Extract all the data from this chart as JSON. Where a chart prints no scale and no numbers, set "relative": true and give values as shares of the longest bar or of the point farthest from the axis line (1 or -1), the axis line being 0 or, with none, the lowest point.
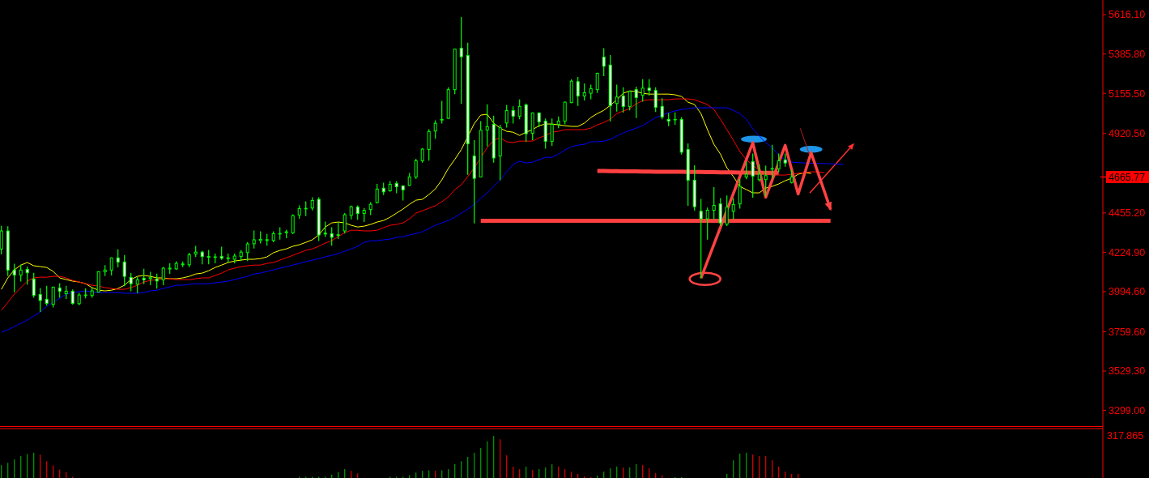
{
  "chart_data": [
    {
      "type": "candlestick",
      "color": "#00ff00",
      "categories": [
        null,
        null,
        null,
        null,
        null,
        null,
        null,
        null,
        null,
        null,
        null,
        null,
        null,
        null,
        null,
        null,
        null,
        null,
        null,
        null,
        null,
        null,
        null,
        null,
        null,
        null,
        null,
        null,
        null,
        null,
        null,
        null,
        null,
        null,
        null,
        null,
        null,
        null,
        null,
        null,
        null,
        null,
        null,
        null,
        null,
        null,
        null,
        null,
        null,
        null,
        null,
        null,
        null,
        null,
        null,
        null,
        null,
        null,
        null,
        null,
        null,
        null,
        null,
        null,
        null,
        null,
        null,
        null,
        null,
        null,
        null,
        null,
        null,
        null,
        null,
        null,
        null,
        null,
        null,
        null,
        null,
        null,
        null,
        null,
        null,
        null,
        null,
        null,
        null,
        null,
        null,
        null,
        null,
        null,
        null,
        null,
        null,
        null,
        null,
        null,
        null,
        null,
        null,
        null,
        null,
        null,
        null,
        null,
        null,
        null,
        null,
        null,
        null,
        null,
        null,
        null,
        null,
        null,
        null,
        null,
        null,
        null,
        null,
        null,
        null,
        null,
        null,
        null,
        null,
        null,
        null
      ],
      "ohlc": [
        [
          4244,
          4377,
          4215,
          4350
        ],
        [
          4350,
          4374,
          4089,
          4121
        ],
        [
          4121,
          4155,
          3994,
          4092
        ],
        [
          4092,
          4149,
          4057,
          4121
        ],
        [
          4125,
          4139,
          4038,
          4105
        ],
        [
          4068,
          4102,
          3962,
          3973
        ],
        [
          3978,
          4013,
          3879,
          3943
        ],
        [
          3950,
          4026,
          3915,
          3926
        ],
        [
          3920,
          4021,
          3905,
          4021
        ],
        [
          4016,
          4041,
          3962,
          3997
        ],
        [
          3983,
          4026,
          3955,
          3997
        ],
        [
          3997,
          4005,
          3921,
          3926
        ],
        [
          3924,
          3985,
          3918,
          3975
        ],
        [
          3972,
          4010,
          3958,
          3975
        ],
        [
          3972,
          4018,
          3962,
          3999
        ],
        [
          3992,
          4111,
          3992,
          4111
        ],
        [
          4111,
          4147,
          4089,
          4121
        ],
        [
          4121,
          4192,
          4092,
          4192
        ],
        [
          4192,
          4239,
          4139,
          4168
        ],
        [
          4168,
          4206,
          4029,
          4084
        ],
        [
          4078,
          4102,
          4000,
          4041
        ],
        [
          4038,
          4078,
          3989,
          4064
        ],
        [
          4073,
          4125,
          4041,
          4064
        ],
        [
          4070,
          4108,
          4035,
          4076
        ],
        [
          4068,
          4097,
          4015,
          4057
        ],
        [
          4064,
          4136,
          4035,
          4132
        ],
        [
          4127,
          4157,
          4102,
          4132
        ],
        [
          4128,
          4169,
          4124,
          4160
        ],
        [
          4152,
          4168,
          4141,
          4157
        ],
        [
          4152,
          4219,
          4141,
          4211
        ],
        [
          4215,
          4260,
          4200,
          4226
        ],
        [
          4226,
          4231,
          4157,
          4200
        ],
        [
          4200,
          4236,
          4157,
          4196
        ],
        [
          4195,
          4215,
          4163,
          4198
        ],
        [
          4200,
          4255,
          4184,
          4190
        ],
        [
          4188,
          4215,
          4168,
          4192
        ],
        [
          4184,
          4215,
          4163,
          4203
        ],
        [
          4200,
          4236,
          4176,
          4226
        ],
        [
          4223,
          4282,
          4176,
          4274
        ],
        [
          4275,
          4350,
          4250,
          4298
        ],
        [
          4294,
          4345,
          4279,
          4301
        ],
        [
          4294,
          4329,
          4266,
          4299
        ],
        [
          4294,
          4345,
          4286,
          4334
        ],
        [
          4332,
          4369,
          4302,
          4335
        ],
        [
          4339,
          4354,
          4310,
          4345
        ],
        [
          4339,
          4445,
          4334,
          4440
        ],
        [
          4443,
          4497,
          4424,
          4481
        ],
        [
          4479,
          4520,
          4440,
          4482
        ],
        [
          4484,
          4544,
          4473,
          4528
        ],
        [
          4535,
          4544,
          4294,
          4326
        ],
        [
          4337,
          4402,
          4318,
          4332
        ],
        [
          4334,
          4369,
          4266,
          4313
        ],
        [
          4324,
          4397,
          4305,
          4328
        ],
        [
          4350,
          4452,
          4337,
          4445
        ],
        [
          4441,
          4495,
          4421,
          4492
        ],
        [
          4490,
          4497,
          4418,
          4452
        ],
        [
          4452,
          4481,
          4405,
          4471
        ],
        [
          4475,
          4516,
          4446,
          4506
        ],
        [
          4516,
          4623,
          4513,
          4595
        ],
        [
          4600,
          4630,
          4563,
          4579
        ],
        [
          4585,
          4639,
          4582,
          4623
        ],
        [
          4628,
          4639,
          4573,
          4609
        ],
        [
          4614,
          4614,
          4531,
          4590
        ],
        [
          4617,
          4686,
          4617,
          4666
        ],
        [
          4666,
          4769,
          4658,
          4761
        ],
        [
          4761,
          4832,
          4753,
          4829
        ],
        [
          4827,
          4943,
          4764,
          4932
        ],
        [
          4935,
          4995,
          4892,
          4980
        ],
        [
          4999,
          5109,
          4982,
          5003
        ],
        [
          5009,
          5188,
          5009,
          5177
        ],
        [
          5177,
          5415,
          5153,
          5415
        ],
        [
          5420,
          5599,
          5096,
          5370
        ],
        [
          5377,
          5449,
          4682,
          4860
        ],
        [
          4788,
          4879,
          4397,
          4658
        ],
        [
          4666,
          4990,
          4666,
          4939
        ],
        [
          4941,
          5088,
          4848,
          4960
        ],
        [
          4974,
          5022,
          4753,
          4777
        ],
        [
          4789,
          4969,
          4650,
          4954
        ],
        [
          4982,
          5085,
          4958,
          5055
        ],
        [
          5055,
          5077,
          4982,
          5022
        ],
        [
          5022,
          5117,
          5006,
          5079
        ],
        [
          5088,
          5093,
          4875,
          4919
        ],
        [
          4922,
          5041,
          4884,
          5041
        ],
        [
          5041,
          5041,
          4960,
          4989
        ],
        [
          4993,
          5006,
          4835,
          4875
        ],
        [
          4875,
          5006,
          4851,
          4974
        ],
        [
          4974,
          5017,
          4954,
          4993
        ],
        [
          4993,
          5104,
          4977,
          5104
        ],
        [
          5101,
          5235,
          5101,
          5227
        ],
        [
          5224,
          5248,
          5085,
          5140
        ],
        [
          5140,
          5211,
          5117,
          5159
        ],
        [
          5156,
          5204,
          5124,
          5183
        ],
        [
          5177,
          5273,
          5161,
          5273
        ],
        [
          5368,
          5417,
          5259,
          5314
        ],
        [
          5321,
          5377,
          4993,
          5083
        ],
        [
          5096,
          5204,
          5052,
          5134
        ],
        [
          5140,
          5188,
          5045,
          5079
        ],
        [
          5079,
          5167,
          5058,
          5167
        ],
        [
          5177,
          5192,
          5014,
          5131
        ],
        [
          5145,
          5235,
          5110,
          5186
        ],
        [
          5186,
          5235,
          5145,
          5173
        ],
        [
          5172,
          5188,
          5049,
          5074
        ],
        [
          5079,
          5124,
          5006,
          5017
        ],
        [
          5003,
          5038,
          4966,
          4993
        ],
        [
          5003,
          5041,
          4974,
          5001
        ],
        [
          5003,
          5014,
          4800,
          4811
        ],
        [
          4827,
          4860,
          4500,
          4647
        ],
        [
          4647,
          4732,
          4471,
          4492
        ],
        [
          4465,
          4535,
          4076,
          4421
        ],
        [
          4421,
          4484,
          4302,
          4471
        ],
        [
          4471,
          4603,
          4421,
          4500
        ],
        [
          4508,
          4539,
          4381,
          4397
        ],
        [
          4389,
          4555,
          4381,
          4489
        ],
        [
          4465,
          4539,
          4421,
          4505
        ],
        [
          4508,
          4650,
          4484,
          4611
        ],
        [
          4666,
          4753,
          4655,
          4682
        ],
        [
          4756,
          4800,
          4547,
          4671
        ],
        [
          4650,
          4737,
          4642,
          4682
        ],
        [
          4650,
          4729,
          4555,
          4674
        ],
        [
          4712,
          4851,
          4660,
          4715
        ],
        [
          4713,
          4800,
          4697,
          4761
        ],
        [
          4765,
          4800,
          4729,
          4748
        ],
        [
          4634,
          4705,
          4630,
          4666
        ],
        null,
        null,
        null,
        null,
        null,
        null,
        null,
        null
      ],
      "series": [
        {
          "type": "line",
          "color": "#ffff00",
          "values": [
            4008,
            4075,
            4122,
            4150,
            4165,
            4146,
            4141,
            4136,
            4113,
            4075,
            4065,
            4056,
            4051,
            4041,
            4018,
            4003,
            3999,
            4003,
            4013,
            4032,
            4065,
            4084,
            4089,
            4084,
            4075,
            4075,
            4070,
            4070,
            4075,
            4084,
            4098,
            4103,
            4117,
            4136,
            4150,
            4165,
            4174,
            4179,
            4184,
            4184,
            4188,
            4198,
            4222,
            4236,
            4245,
            4260,
            4269,
            4283,
            4298,
            4326,
            4373,
            4397,
            4402,
            4397,
            4383,
            4373,
            4378,
            4388,
            4402,
            4411,
            4430,
            4454,
            4478,
            4506,
            4530,
            4535,
            4563,
            4596,
            4649,
            4716,
            4769,
            4826,
            null,
            4978,
            5028,
            5033,
            4981,
            4952,
            4933,
            4928,
            4909,
            4928,
            4943,
            4966,
            4976,
            4976,
            4971,
            4966,
            4962,
            4962,
            4981,
            5014,
            5037,
            5056,
            5085,
            5118,
            5156,
            5170,
            5166,
            5156,
            5151,
            5151,
            5151,
            5151,
            5147,
            5137,
            5104,
            5090,
            5037,
            4943,
            4857,
            4800,
            4720,
            4668,
            4611,
            4592,
            4573,
            4573,
            4601,
            4611,
            4625,
            4644,
            4658,
            4682,
            4691,
            4687,
            null,
            null,
            null,
            null,
            null
          ]
        },
        {
          "type": "line",
          "color": "#ff0000",
          "values": [
            3885,
            3932,
            3980,
            4018,
            4056,
            4075,
            4079,
            4079,
            4084,
            4084,
            4075,
            4060,
            4051,
            4041,
            4032,
            4027,
            4018,
            4013,
            4008,
            4008,
            4018,
            4032,
            4051,
            4060,
            4065,
            4070,
            4070,
            4065,
            4065,
            4065,
            4070,
            4075,
            4075,
            4089,
            4103,
            4122,
            4132,
            4141,
            4146,
            4150,
            4150,
            4160,
            4165,
            4179,
            4193,
            4207,
            4222,
            4236,
            4245,
            4260,
            4279,
            4293,
            4317,
            4340,
            4354,
            4354,
            4350,
            4350,
            4354,
            4369,
            4383,
            4388,
            4397,
            4421,
            4454,
            4468,
            4483,
            4497,
            4521,
            4549,
            4592,
            4620,
            4668,
            4720,
            4777,
            4838,
            4881,
            4895,
            4872,
            4867,
            4876,
            4876,
            4876,
            4895,
            4909,
            4928,
            4933,
            4943,
            4943,
            4943,
            4943,
            4952,
            4971,
            4985,
            5004,
            5037,
            5052,
            5066,
            5094,
            5113,
            5118,
            5118,
            5118,
            5118,
            5123,
            5123,
            5123,
            5118,
            5104,
            5090,
            5061,
            5004,
            4943,
            4881,
            4815,
            4767,
            4734,
            4706,
            4682,
            4677,
            4677,
            4677,
            4682,
            4687,
            4691,
            4696,
            4696,
            4691,
            null,
            null,
            null
          ]
        },
        {
          "type": "line",
          "color": "#0000ff",
          "values": [
            3757,
            3771,
            3790,
            3809,
            3828,
            3852,
            3875,
            3909,
            3932,
            3956,
            3980,
            3989,
            3994,
            3999,
            3994,
            3989,
            3989,
            3989,
            3989,
            3985,
            3985,
            3985,
            3989,
            3999,
            4003,
            4013,
            4022,
            4032,
            4032,
            4037,
            4041,
            4041,
            4041,
            4046,
            4051,
            4056,
            4065,
            4075,
            4084,
            4098,
            4103,
            4113,
            4122,
            4132,
            4141,
            4150,
            4160,
            4170,
            4179,
            4188,
            4198,
            4207,
            4217,
            4231,
            4245,
            4260,
            4283,
            4293,
            4293,
            4298,
            4302,
            4312,
            4317,
            4326,
            4335,
            4345,
            4364,
            4383,
            4397,
            4411,
            4430,
            4454,
            4478,
            4506,
            4540,
            4573,
            4611,
            4649,
            4696,
            4739,
            4758,
            4748,
            4753,
            4767,
            4781,
            4781,
            4800,
            4824,
            4843,
            4852,
            4857,
            4872,
            4872,
            4876,
            4886,
            4905,
            4924,
            4938,
            4952,
            4966,
            4990,
            5014,
            5028,
            5042,
            5052,
            5061,
            5066,
            5071,
            5071,
            5071,
            5071,
            5071,
            5071,
            5056,
            5037,
            5004,
            4948,
            4905,
            4868,
            4836,
            4796,
            4766,
            4753,
            4750,
            4748,
            4746,
            4745,
            4745,
            4743,
            4741,
            4740
          ]
        },
        {
          "type": "line",
          "color": "#ff4040",
          "values": [
            null,
            null,
            null,
            null,
            null,
            null,
            null,
            null,
            null,
            null,
            null,
            null,
            null,
            null,
            null,
            null,
            null,
            null,
            null,
            null,
            null,
            null,
            null,
            null,
            null,
            null,
            null,
            null,
            null,
            null,
            null,
            null,
            null,
            null,
            null,
            null,
            null,
            null,
            null,
            null,
            null,
            null,
            null,
            null,
            null,
            null,
            null,
            null,
            null,
            null,
            null,
            null,
            null,
            null,
            null,
            null,
            null,
            null,
            null,
            null,
            null,
            null,
            null,
            null,
            null,
            null,
            null,
            null,
            null,
            null,
            null,
            null,
            null,
            null,
            4410,
            4410,
            4410,
            4410,
            4410,
            4410,
            4410,
            4410,
            4410,
            4410,
            4410,
            4410,
            4410,
            4410,
            4410,
            4410,
            4410,
            4410,
            4410,
            4410,
            4410,
            4410,
            4410,
            4410,
            4410,
            4410,
            4410,
            4410,
            4410,
            4410,
            4410,
            4410,
            4410,
            4410,
            4410,
            4410,
            4410,
            4410,
            4410,
            4410,
            4410,
            4410,
            4410,
            4410,
            4410,
            4410,
            4410,
            4410,
            4410,
            4410,
            4410,
            4410,
            4410,
            4410,
            4410,
            null,
            null
          ]
        },
        {
          "type": "line",
          "color": "#ff4040",
          "values": [
            null,
            null,
            null,
            null,
            null,
            null,
            null,
            null,
            null,
            null,
            null,
            null,
            null,
            null,
            null,
            null,
            null,
            null,
            null,
            null,
            null,
            null,
            null,
            null,
            null,
            null,
            null,
            null,
            null,
            null,
            null,
            null,
            null,
            null,
            null,
            null,
            null,
            null,
            null,
            null,
            null,
            null,
            null,
            null,
            null,
            null,
            null,
            null,
            null,
            null,
            null,
            null,
            null,
            null,
            null,
            null,
            null,
            null,
            null,
            null,
            null,
            null,
            null,
            null,
            null,
            null,
            null,
            null,
            null,
            null,
            null,
            null,
            null,
            null,
            null,
            null,
            null,
            null,
            null,
            null,
            null,
            null,
            null,
            null,
            null,
            null,
            null,
            null,
            null,
            null,
            null,
            null,
            4701,
            4701,
            4700,
            4700,
            4699,
            4699,
            4699,
            4698,
            4698,
            4697,
            4697,
            4697,
            4696,
            4696,
            4695,
            4695,
            4695,
            4694,
            4694,
            4693,
            4693,
            4693,
            4692,
            4692,
            4691,
            4691,
            4691,
            4690,
            4690,
            null,
            null,
            null,
            null,
            null,
            null,
            null,
            null,
            null,
            null
          ]
        },
        {
          "type": "line",
          "color": "#ff4242",
          "values": [
            null,
            null,
            null,
            null,
            null,
            null,
            null,
            null,
            null,
            null,
            null,
            null,
            null,
            null,
            null,
            null,
            null,
            null,
            null,
            null,
            null,
            null,
            null,
            null,
            null,
            null,
            null,
            null,
            null,
            null,
            null,
            null,
            null,
            null,
            null,
            null,
            null,
            null,
            null,
            null,
            null,
            null,
            null,
            null,
            null,
            null,
            null,
            null,
            null,
            null,
            null,
            null,
            null,
            null,
            null,
            null,
            null,
            null,
            null,
            null,
            null,
            null,
            null,
            null,
            null,
            null,
            null,
            null,
            null,
            null,
            null,
            null,
            null,
            null,
            null,
            null,
            null,
            null,
            null,
            null,
            null,
            null,
            null,
            null,
            null,
            null,
            null,
            null,
            null,
            null,
            null,
            null,
            null,
            null,
            null,
            null,
            null,
            null,
            null,
            null,
            null,
            null,
            null,
            null,
            null,
            null,
            null,
            null,
            4073,
            null,
            null,
            null,
            null,
            null,
            null,
            null,
            4867,
            null,
            4547,
            null,
            null,
            4851,
            null,
            4566,
            null,
            4808,
            null,
            null,
            4476,
            null,
            null
          ]
        }
      ],
      "ylim": [
        3207,
        5702
      ],
      "yticks": [
        {
          "value": 5616.1,
          "label": "5616.10"
        },
        {
          "value": 5385.8,
          "label": "5385.80"
        },
        {
          "value": 5155.5,
          "label": "5155.50"
        },
        {
          "value": 4920.5,
          "label": "4920.50"
        },
        {
          "value": 4455.2,
          "label": "4455.20"
        },
        {
          "value": 4224.9,
          "label": "4224.90"
        },
        {
          "value": 3994.6,
          "label": "3994.60"
        },
        {
          "value": 3759.6,
          "label": "3759.60"
        },
        {
          "value": 3529.3,
          "label": "3529.30"
        },
        {
          "value": 3299,
          "label": "3299.00"
        }
      ],
      "ref_lines": [
        {
          "axis": "y",
          "value": 4665.77,
          "label": "4665.77",
          "color": "#ff0000"
        }
      ],
      "tick_labels": "y"
    },
    {
      "type": "bar",
      "relative": true,
      "categories": [
        null,
        null,
        null,
        null,
        null,
        null,
        null,
        null,
        null,
        null,
        null,
        null,
        null,
        null,
        null,
        null,
        null,
        null,
        null,
        null,
        null,
        null,
        null,
        null,
        null,
        null,
        null,
        null,
        null,
        null,
        null,
        null,
        null,
        null,
        null,
        null,
        null,
        null,
        null,
        null,
        null,
        null,
        null,
        null,
        null,
        null,
        null,
        null,
        null,
        null,
        null,
        null,
        null,
        null,
        null,
        null,
        null,
        null,
        null,
        null,
        null,
        null,
        null,
        null,
        null,
        null,
        null,
        null,
        null,
        null,
        null,
        null,
        null,
        null,
        null,
        null,
        null,
        null,
        null,
        null,
        null,
        null,
        null,
        null,
        null,
        null,
        null,
        null,
        null,
        null,
        null,
        null,
        null,
        null,
        null,
        null,
        null,
        null,
        null,
        null,
        null,
        null,
        null,
        null,
        null,
        null,
        null,
        null,
        null,
        null,
        null,
        null,
        null,
        null,
        null,
        null,
        null,
        null,
        null,
        null,
        null,
        null,
        null,
        null,
        null,
        null,
        null,
        null,
        null,
        null,
        null
      ],
      "values": [
        0.31,
        0.36,
        0.44,
        0.52,
        0.57,
        0.6,
        0.56,
        0.4,
        0.3,
        0.2,
        0.14,
        0.03,
        null,
        null,
        null,
        null,
        null,
        null,
        null,
        null,
        null,
        null,
        null,
        null,
        null,
        null,
        null,
        null,
        null,
        null,
        null,
        null,
        null,
        null,
        null,
        null,
        null,
        null,
        null,
        null,
        null,
        null,
        null,
        null,
        null,
        null,
        0.03,
        0.03,
        0.03,
        0.03,
        0.03,
        0.08,
        0.14,
        0.21,
        0.17,
        0.11,
        null,
        null,
        null,
        null,
        0.03,
        0.03,
        0.03,
        0.07,
        0.13,
        0.17,
        0.18,
        0.17,
        0.18,
        0.21,
        0.33,
        0.4,
        0.5,
        0.6,
        0.71,
        0.87,
        1,
        0.92,
        0.54,
        0.27,
        0.21,
        0.27,
        0.19,
        0.21,
        0.25,
        0.33,
        0.27,
        0.21,
        0.15,
        0.1,
        0.04,
        0.02,
        0.06,
        0.15,
        0.23,
        0.27,
        0.25,
        0.25,
        0.33,
        0.31,
        0.23,
        0.12,
        0.06,
        null,
        0.02,
        0.02,
        null,
        null,
        null,
        null,
        null,
        null,
        0.1,
        0.42,
        0.58,
        0.6,
        0.56,
        0.52,
        0.52,
        0.42,
        0.27,
        0.15,
        0.1,
        0.1,
        null,
        null,
        null,
        null,
        null,
        null,
        null
      ],
      "colors": [
        "#00a000",
        "#00a000",
        "#00a000",
        "#00a000",
        "#00a000",
        "#00a000",
        "#e00000",
        "#e00000",
        "#e00000",
        "#e00000",
        "#e00000",
        "#e00000",
        null,
        null,
        null,
        null,
        null,
        null,
        null,
        null,
        null,
        null,
        null,
        null,
        null,
        null,
        null,
        null,
        null,
        null,
        null,
        null,
        null,
        null,
        null,
        null,
        null,
        null,
        null,
        null,
        null,
        null,
        null,
        null,
        null,
        null,
        "#00a000",
        "#00a000",
        "#00a000",
        "#00a000",
        "#00a000",
        "#00a000",
        "#00a000",
        "#00a000",
        "#e00000",
        "#e00000",
        null,
        null,
        null,
        null,
        "#00a000",
        "#00a000",
        "#00a000",
        "#00a000",
        "#00a000",
        "#00a000",
        "#00a000",
        "#e00000",
        "#00a000",
        "#00a000",
        "#00a000",
        "#00a000",
        "#00a000",
        "#00a000",
        "#00a000",
        "#00a000",
        "#00a000",
        "#e00000",
        "#e00000",
        "#e00000",
        "#e00000",
        "#00a000",
        "#e00000",
        "#00a000",
        "#00a000",
        "#00a000",
        "#e00000",
        "#e00000",
        "#e00000",
        "#e00000",
        "#e00000",
        "#e00000",
        "#00a000",
        "#00a000",
        "#00a000",
        "#00a000",
        "#e00000",
        "#00a000",
        "#00a000",
        "#e00000",
        "#e00000",
        "#e00000",
        "#e00000",
        null,
        "#00a000",
        "#00a000",
        null,
        null,
        null,
        null,
        null,
        null,
        "#00a000",
        "#00a000",
        "#00a000",
        "#00a000",
        "#e00000",
        "#e00000",
        "#e00000",
        "#e00000",
        "#e00000",
        "#e00000",
        "#e00000",
        "#e00000",
        null,
        null,
        null,
        null,
        null,
        null,
        null
      ],
      "annotations": [
        "317.865"
      ],
      "tick_labels": false
    }
  ]
}
